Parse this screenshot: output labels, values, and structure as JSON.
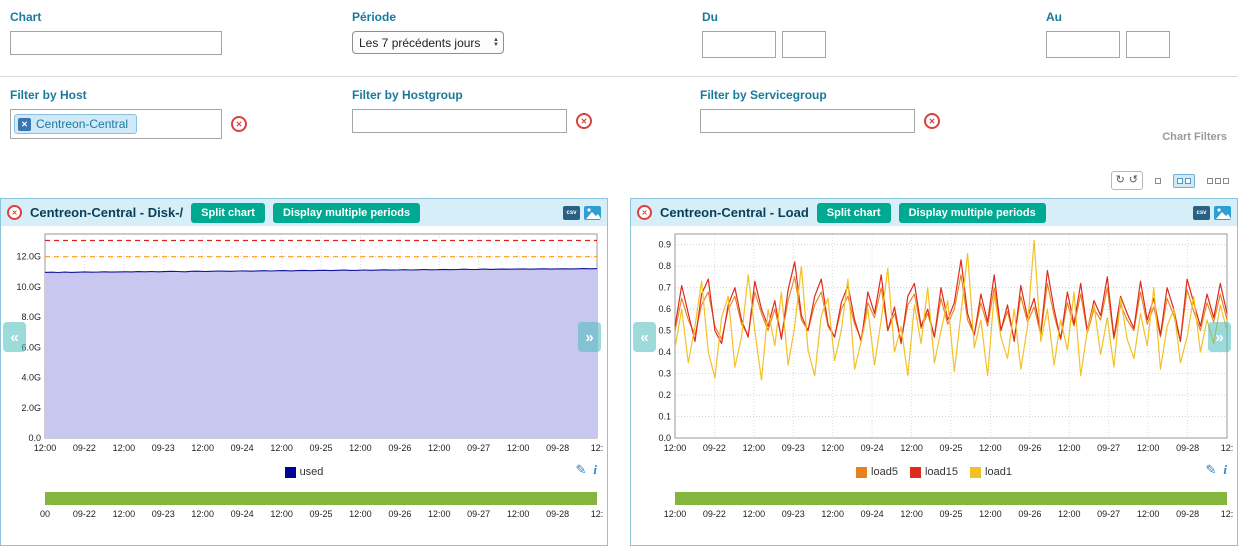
{
  "filters": {
    "chart": {
      "label": "Chart",
      "value": ""
    },
    "periode": {
      "label": "Période",
      "value": "Les 7 précédents jours"
    },
    "du": {
      "label": "Du",
      "date_value": "",
      "time_value": ""
    },
    "au": {
      "label": "Au",
      "date_value": "",
      "time_value": ""
    },
    "host": {
      "label": "Filter by Host",
      "selected": "Centreon-Central"
    },
    "hostgroup": {
      "label": "Filter by Hostgroup",
      "value": ""
    },
    "servicegroup": {
      "label": "Filter by Servicegroup",
      "value": ""
    },
    "section_label": "Chart Filters"
  },
  "icons": {
    "close": "✕",
    "chip_remove": "✕",
    "clear": "✕",
    "refresh": "↻",
    "auto_refresh": "↺",
    "csv": "csv",
    "edit": "✎",
    "info": "i",
    "nav_left": "«",
    "nav_right": "»"
  },
  "chart_data": [
    {
      "type": "area",
      "title": "Centreon-Central - Disk-/",
      "buttons": {
        "split": "Split chart",
        "multiple_periods": "Display multiple periods"
      },
      "ylim": [
        0,
        13.5
      ],
      "yticks": [
        0,
        2,
        4,
        6,
        8,
        10,
        12
      ],
      "ytick_labels": [
        "0.0",
        "2.0G",
        "4.0G",
        "6.0G",
        "8.0G",
        "10.0G",
        "12.0G"
      ],
      "xlabels": [
        "12:00",
        "09-22",
        "12:00",
        "09-23",
        "12:00",
        "09-24",
        "12:00",
        "09-25",
        "12:00",
        "09-26",
        "12:00",
        "09-27",
        "12:00",
        "09-28",
        "12:"
      ],
      "timeline_labels": [
        "00",
        "09-22",
        "12:00",
        "09-23",
        "12:00",
        "09-24",
        "12:00",
        "09-25",
        "12:00",
        "09-26",
        "12:00",
        "09-27",
        "12:00",
        "09-28",
        "12:"
      ],
      "thresholds": [
        {
          "name": "warning",
          "value": 12.0,
          "color": "#ff9a13"
        },
        {
          "name": "critical",
          "value": 13.07,
          "color": "#e32020"
        }
      ],
      "series": [
        {
          "name": "used",
          "color": "#1414a0",
          "fill": "#c7c7ef",
          "width": 1.1,
          "values": [
            10.96,
            10.97,
            10.95,
            10.98,
            10.96,
            10.97,
            10.99,
            10.97,
            10.98,
            11.0,
            10.98,
            10.99,
            11.0,
            10.99,
            11.01,
            11.0,
            11.02,
            11.0,
            11.01,
            11.03,
            11.02,
            11.0,
            11.03,
            11.04,
            11.02,
            11.03,
            11.05,
            11.04,
            11.03,
            11.05,
            11.06,
            11.04,
            11.06,
            11.07,
            11.05,
            11.07,
            11.08,
            11.06,
            11.08,
            11.09,
            11.07,
            11.09,
            11.1,
            11.08,
            11.1,
            11.11,
            11.09,
            11.1,
            11.12,
            11.1,
            11.11,
            11.13,
            11.11,
            11.12,
            11.14,
            11.12,
            11.13,
            11.15,
            11.13,
            11.14,
            11.16,
            11.14,
            11.15,
            11.17,
            11.15,
            11.16,
            11.18,
            11.16,
            11.17,
            11.18,
            11.17,
            11.18,
            11.19,
            11.17,
            11.19,
            11.2,
            11.18,
            11.19,
            11.2,
            11.19,
            11.2,
            11.21,
            11.2,
            11.21
          ]
        }
      ],
      "legend": [
        {
          "label": "used",
          "color": "#000496"
        }
      ]
    },
    {
      "type": "line",
      "title": "Centreon-Central - Load",
      "buttons": {
        "split": "Split chart",
        "multiple_periods": "Display multiple periods"
      },
      "ylim": [
        0,
        0.95
      ],
      "yticks": [
        0,
        0.1,
        0.2,
        0.3,
        0.4,
        0.5,
        0.6,
        0.7,
        0.8,
        0.9
      ],
      "ytick_labels": [
        "0.0",
        "0.1",
        "0.2",
        "0.3",
        "0.4",
        "0.5",
        "0.6",
        "0.7",
        "0.8",
        "0.9"
      ],
      "xlabels": [
        "12:00",
        "09-22",
        "12:00",
        "09-23",
        "12:00",
        "09-24",
        "12:00",
        "09-25",
        "12:00",
        "09-26",
        "12:00",
        "09-27",
        "12:00",
        "09-28",
        "12:"
      ],
      "timeline_labels": [
        "12:00",
        "09-22",
        "12:00",
        "09-23",
        "12:00",
        "09-24",
        "12:00",
        "09-25",
        "12:00",
        "09-26",
        "12:00",
        "09-27",
        "12:00",
        "09-28",
        "12:"
      ],
      "thresholds": [],
      "series": [
        {
          "name": "load5",
          "color": "#e8811c",
          "width": 1.1,
          "values": [
            0.5,
            0.65,
            0.55,
            0.48,
            0.62,
            0.68,
            0.52,
            0.46,
            0.6,
            0.66,
            0.53,
            0.48,
            0.68,
            0.58,
            0.5,
            0.6,
            0.47,
            0.64,
            0.75,
            0.55,
            0.5,
            0.62,
            0.68,
            0.52,
            0.47,
            0.6,
            0.66,
            0.53,
            0.46,
            0.63,
            0.56,
            0.7,
            0.5,
            0.58,
            0.45,
            0.62,
            0.67,
            0.51,
            0.58,
            0.47,
            0.65,
            0.53,
            0.6,
            0.76,
            0.55,
            0.48,
            0.63,
            0.52,
            0.7,
            0.5,
            0.59,
            0.46,
            0.66,
            0.54,
            0.61,
            0.48,
            0.72,
            0.57,
            0.46,
            0.63,
            0.52,
            0.67,
            0.49,
            0.6,
            0.55,
            0.7,
            0.46,
            0.62,
            0.55,
            0.5,
            0.68,
            0.53,
            0.61,
            0.47,
            0.65,
            0.57,
            0.45,
            0.69,
            0.59,
            0.5,
            0.63,
            0.54,
            0.67,
            0.55
          ]
        },
        {
          "name": "load15",
          "color": "#e02a1c",
          "width": 1.2,
          "values": [
            0.52,
            0.71,
            0.58,
            0.45,
            0.67,
            0.74,
            0.5,
            0.44,
            0.62,
            0.7,
            0.55,
            0.47,
            0.73,
            0.6,
            0.52,
            0.64,
            0.46,
            0.69,
            0.82,
            0.57,
            0.5,
            0.66,
            0.74,
            0.53,
            0.47,
            0.63,
            0.71,
            0.55,
            0.45,
            0.68,
            0.58,
            0.76,
            0.5,
            0.61,
            0.44,
            0.66,
            0.72,
            0.52,
            0.6,
            0.47,
            0.7,
            0.55,
            0.63,
            0.83,
            0.58,
            0.48,
            0.67,
            0.54,
            0.76,
            0.5,
            0.62,
            0.45,
            0.71,
            0.56,
            0.65,
            0.49,
            0.78,
            0.6,
            0.46,
            0.68,
            0.53,
            0.72,
            0.5,
            0.64,
            0.57,
            0.75,
            0.47,
            0.66,
            0.58,
            0.51,
            0.73,
            0.55,
            0.65,
            0.48,
            0.7,
            0.6,
            0.45,
            0.74,
            0.63,
            0.52,
            0.67,
            0.56,
            0.72,
            0.58
          ]
        },
        {
          "name": "load1",
          "color": "#f3c127",
          "width": 1.2,
          "values": [
            0.42,
            0.6,
            0.35,
            0.52,
            0.73,
            0.4,
            0.28,
            0.56,
            0.66,
            0.33,
            0.47,
            0.76,
            0.5,
            0.27,
            0.6,
            0.43,
            0.68,
            0.34,
            0.52,
            0.8,
            0.41,
            0.29,
            0.57,
            0.65,
            0.36,
            0.5,
            0.74,
            0.32,
            0.45,
            0.6,
            0.34,
            0.55,
            0.79,
            0.4,
            0.52,
            0.29,
            0.62,
            0.44,
            0.7,
            0.35,
            0.5,
            0.64,
            0.31,
            0.58,
            0.86,
            0.42,
            0.55,
            0.29,
            0.67,
            0.47,
            0.37,
            0.6,
            0.32,
            0.52,
            0.92,
            0.45,
            0.6,
            0.34,
            0.55,
            0.41,
            0.68,
            0.29,
            0.5,
            0.62,
            0.39,
            0.56,
            0.33,
            0.65,
            0.46,
            0.37,
            0.58,
            0.43,
            0.7,
            0.32,
            0.52,
            0.6,
            0.35,
            0.47,
            0.66,
            0.4,
            0.55,
            0.44,
            0.62,
            0.5
          ]
        }
      ],
      "legend": [
        {
          "label": "load5",
          "color": "#e8811c"
        },
        {
          "label": "load15",
          "color": "#e02a1c"
        },
        {
          "label": "load1",
          "color": "#f3c127"
        }
      ]
    }
  ]
}
